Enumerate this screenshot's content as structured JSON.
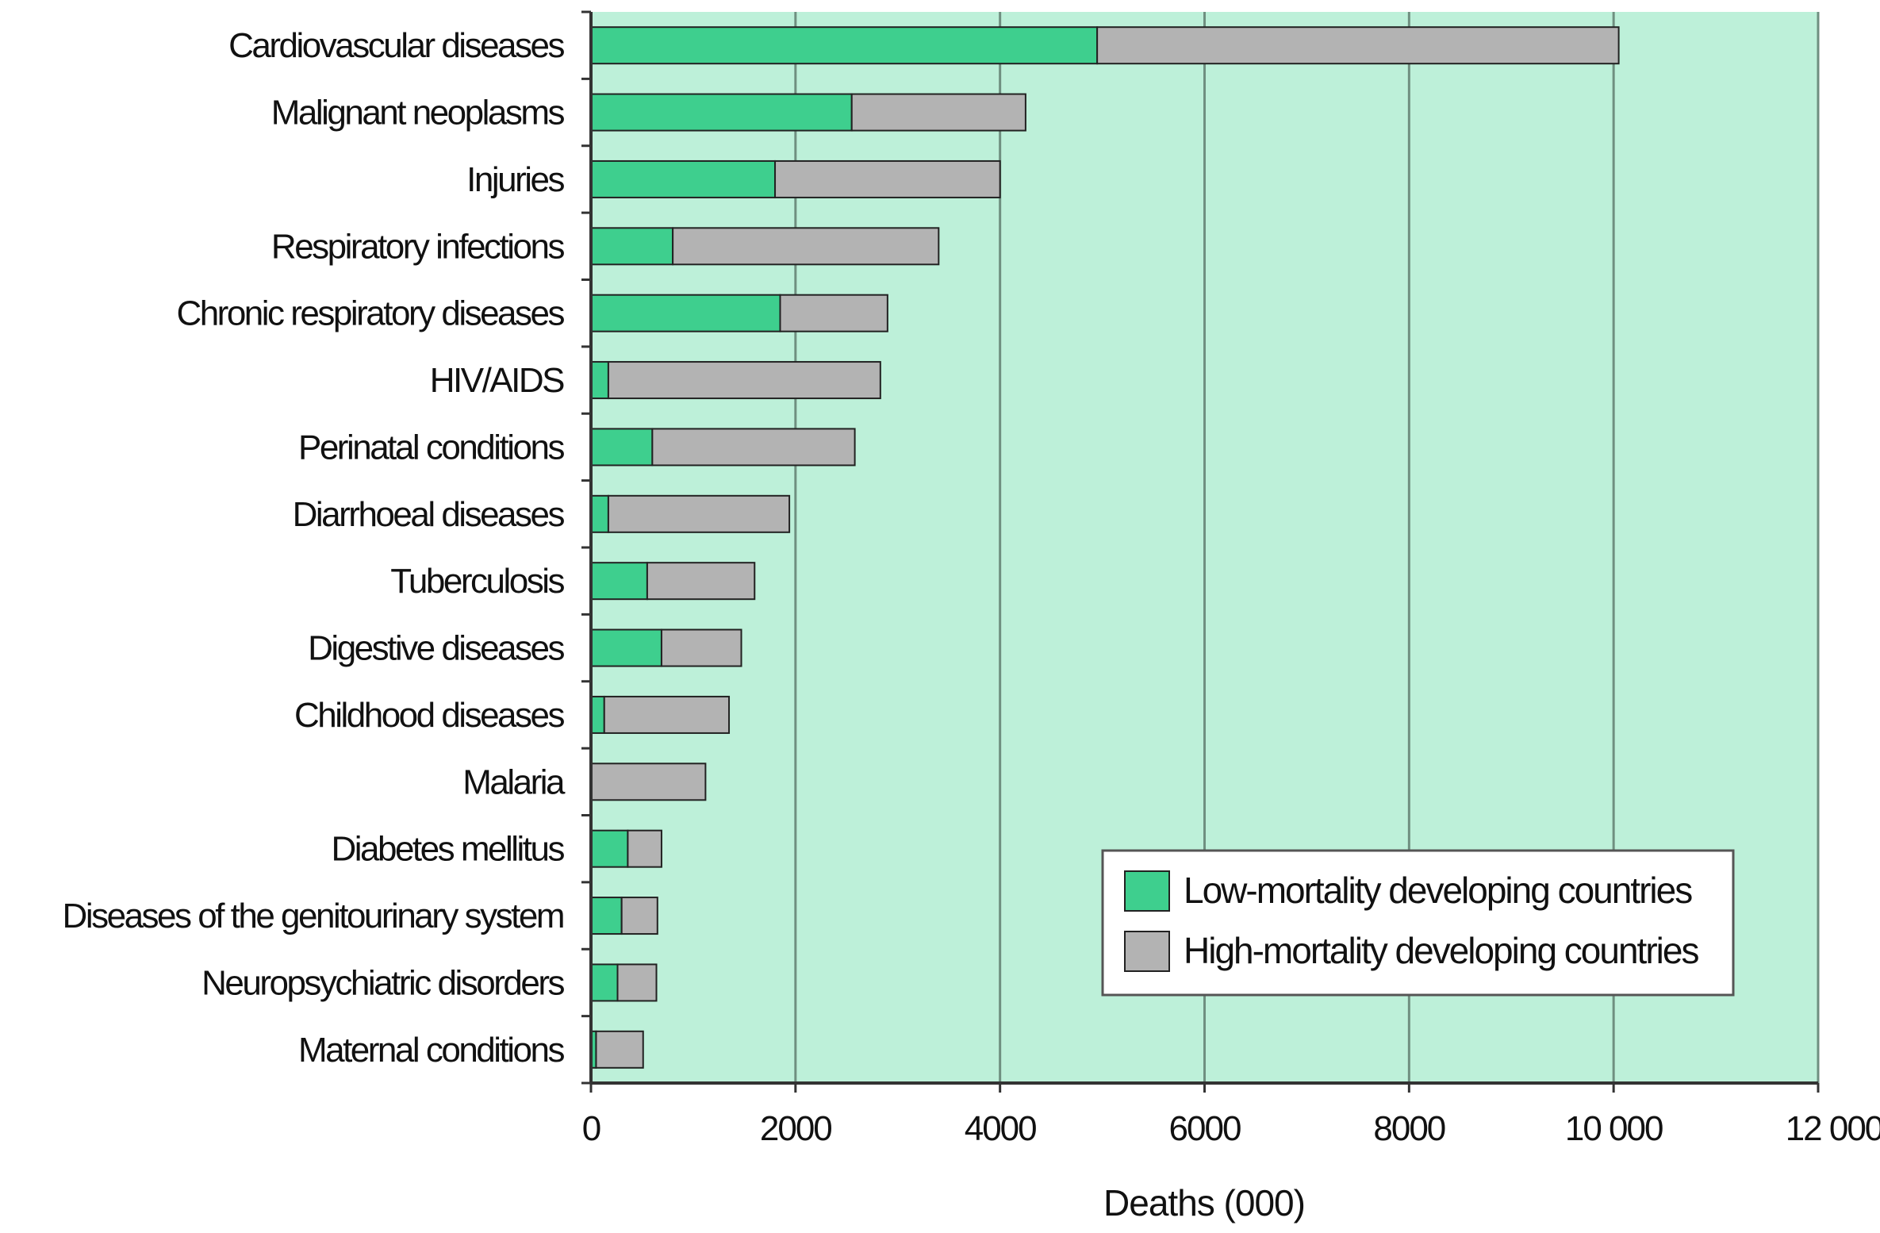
{
  "chart_data": {
    "type": "bar",
    "orientation": "horizontal",
    "stacked": true,
    "categories": [
      "Cardiovascular diseases",
      "Malignant neoplasms",
      "Injuries",
      "Respiratory infections",
      "Chronic respiratory diseases",
      "HIV/AIDS",
      "Perinatal conditions",
      "Diarrhoeal diseases",
      "Tuberculosis",
      "Digestive diseases",
      "Childhood diseases",
      "Malaria",
      "Diabetes mellitus",
      "Diseases of the genitourinary system",
      "Neuropsychiatric disorders",
      "Maternal conditions"
    ],
    "series": [
      {
        "name": "Low-mortality developing countries",
        "color": "#3ecf8e",
        "values": [
          4950,
          2550,
          1800,
          800,
          1850,
          170,
          600,
          170,
          550,
          690,
          130,
          0,
          360,
          300,
          260,
          50
        ]
      },
      {
        "name": "High-mortality developing countries",
        "color": "#b3b3b3",
        "values": [
          5100,
          1700,
          2200,
          2600,
          1050,
          2660,
          1980,
          1770,
          1050,
          780,
          1220,
          1120,
          330,
          350,
          380,
          460
        ]
      }
    ],
    "xlabel": "Deaths (000)",
    "ylabel": "",
    "xlim": [
      0,
      12000
    ],
    "xticks": [
      {
        "value": 0,
        "label": "0"
      },
      {
        "value": 2000,
        "label": "2000"
      },
      {
        "value": 4000,
        "label": "4000"
      },
      {
        "value": 6000,
        "label": "6000"
      },
      {
        "value": 8000,
        "label": "8000"
      },
      {
        "value": 10000,
        "label": "10 000"
      },
      {
        "value": 12000,
        "label": "12 000"
      }
    ],
    "grid": "vertical",
    "plot_background": "#bdf0d9",
    "legend_position": "lower-right"
  }
}
